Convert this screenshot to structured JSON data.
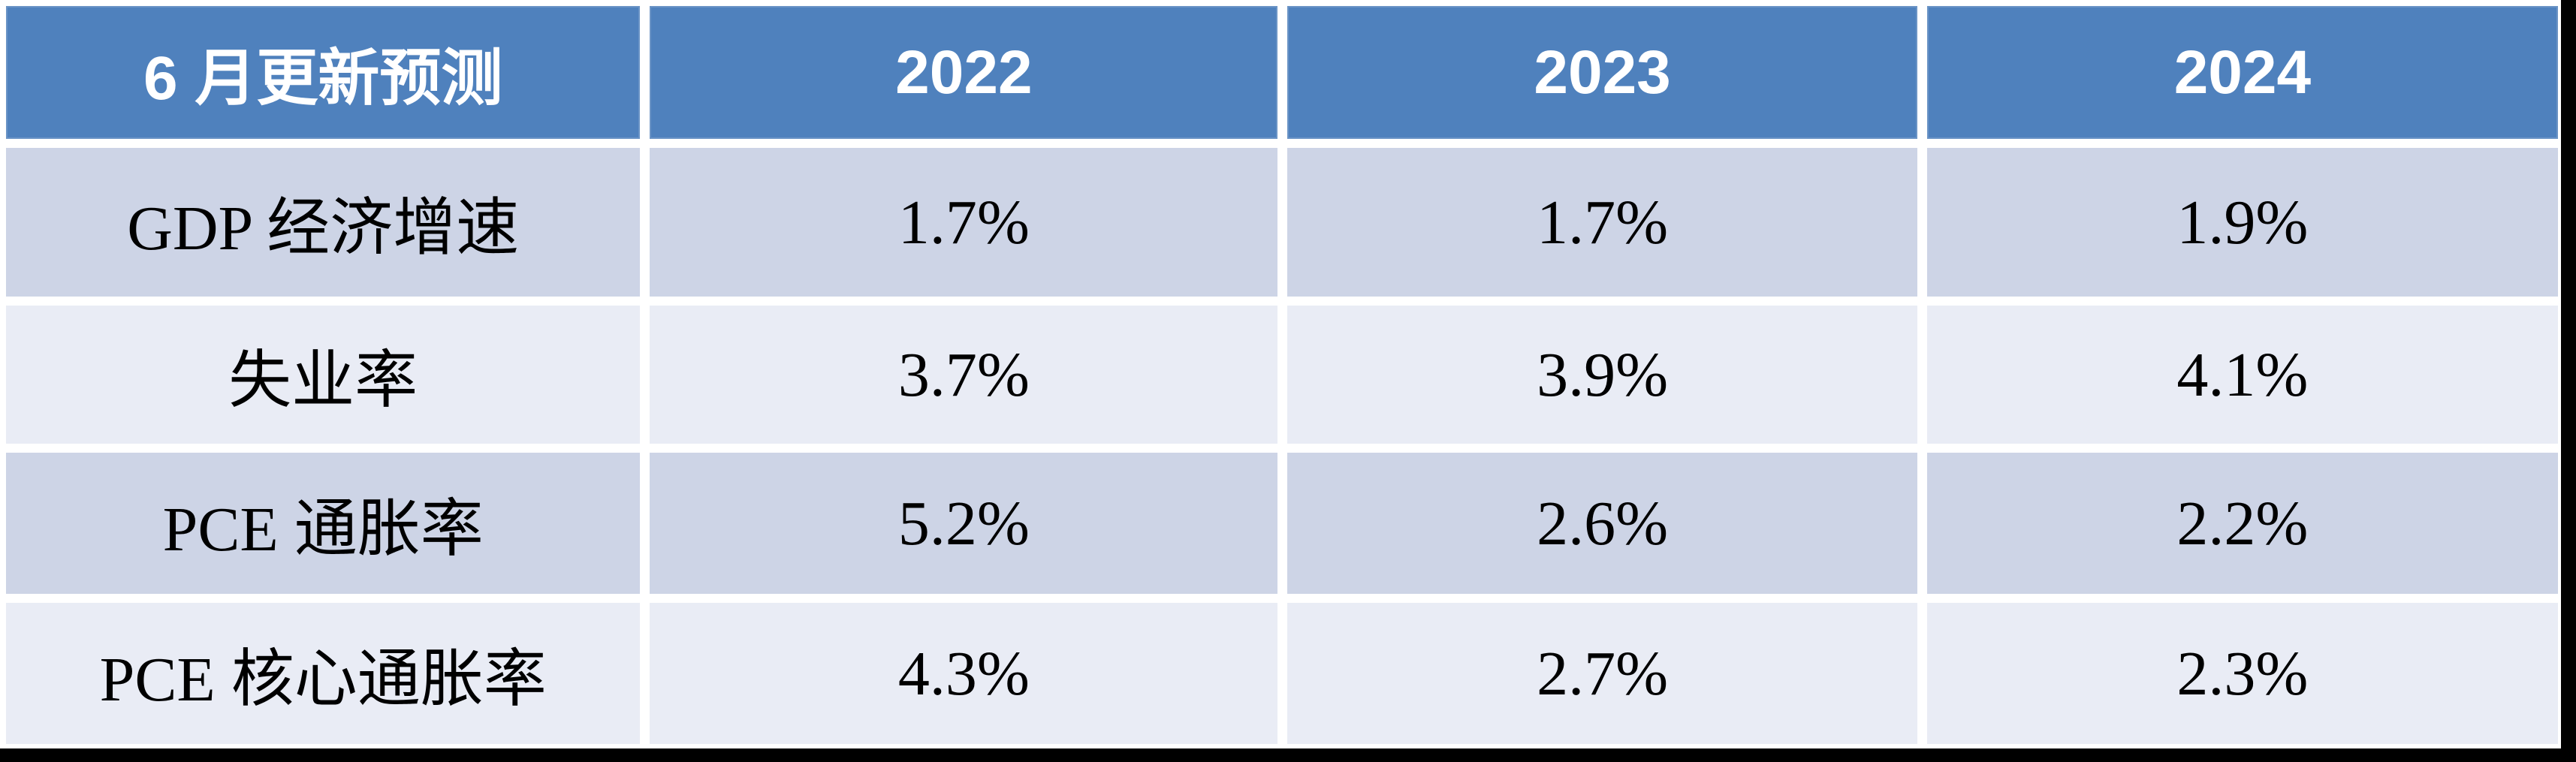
{
  "chart_data": {
    "type": "table",
    "title": "6 月更新预测",
    "columns": [
      "6 月更新预测",
      "2022",
      "2023",
      "2024"
    ],
    "rows": [
      [
        "GDP 经济增速",
        "1.7%",
        "1.7%",
        "1.9%"
      ],
      [
        "失业率",
        "3.7%",
        "3.9%",
        "4.1%"
      ],
      [
        "PCE 通胀率",
        "5.2%",
        "2.6%",
        "2.2%"
      ],
      [
        "PCE 核心通胀率",
        "4.3%",
        "2.7%",
        "2.3%"
      ]
    ]
  },
  "colors": {
    "header_bg": "#4F81BD",
    "row_odd_bg": "#CDD4E6",
    "row_even_bg": "#E9ECF5",
    "header_text": "#FFFFFF",
    "body_text": "#000000",
    "gridline": "#FFFFFF",
    "frame": "#000000"
  }
}
